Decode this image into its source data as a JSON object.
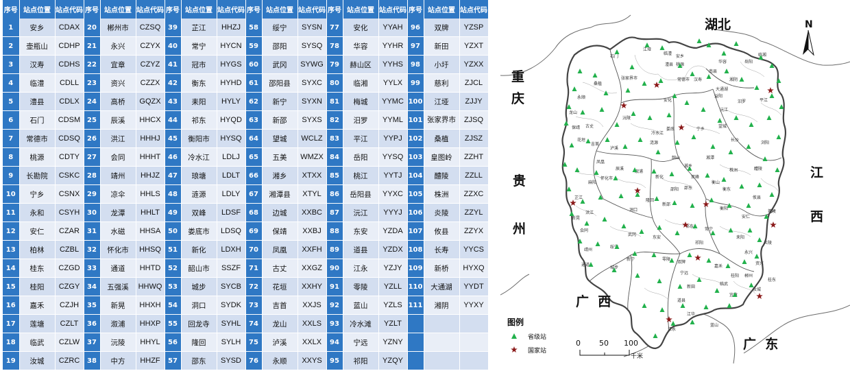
{
  "table": {
    "headers": [
      "序号",
      "站点位置",
      "站点代码",
      "序号",
      "站点位置",
      "站点代码",
      "序号",
      "站点位置",
      "站点代码",
      "序号",
      "站点位置",
      "站点代码",
      "序号",
      "站点位置",
      "站点代码",
      "序号",
      "站点位置",
      "站点代码"
    ],
    "rows": [
      [
        "1",
        "安乡",
        "CDAX",
        "20",
        "郴州市",
        "CZSQ",
        "39",
        "芷江",
        "HHZJ",
        "58",
        "绥宁",
        "SYSN",
        "77",
        "安化",
        "YYAH",
        "96",
        "双牌",
        "YZSP"
      ],
      [
        "2",
        "壶瓶山",
        "CDHP",
        "21",
        "永兴",
        "CZYX",
        "40",
        "常宁",
        "HYCN",
        "59",
        "邵阳",
        "SYSQ",
        "78",
        "华容",
        "YYHR",
        "97",
        "新田",
        "YZXT"
      ],
      [
        "3",
        "汉寿",
        "CDHS",
        "22",
        "宜章",
        "CZYZ",
        "41",
        "冠市",
        "HYGS",
        "60",
        "武冈",
        "SYWG",
        "79",
        "赫山区",
        "YYHS",
        "98",
        "小圩",
        "YZXX"
      ],
      [
        "4",
        "临澧",
        "CDLL",
        "23",
        "资兴",
        "CZZX",
        "42",
        "衡东",
        "HYHD",
        "61",
        "邵阳县",
        "SYXC",
        "80",
        "临湘",
        "YYLX",
        "99",
        "慈利",
        "ZJCL"
      ],
      [
        "5",
        "澧县",
        "CDLX",
        "24",
        "高桥",
        "GQZX",
        "43",
        "耒阳",
        "HYLY",
        "62",
        "新宁",
        "SYXN",
        "81",
        "梅城",
        "YYMC",
        "100",
        "江垭",
        "ZJJY"
      ],
      [
        "6",
        "石门",
        "CDSM",
        "25",
        "辰溪",
        "HHCX",
        "44",
        "祁东",
        "HYQD",
        "63",
        "新邵",
        "SYXS",
        "82",
        "汨罗",
        "YYML",
        "101",
        "张家界市",
        "ZJSQ"
      ],
      [
        "7",
        "常德市",
        "CDSQ",
        "26",
        "洪江",
        "HHHJ",
        "45",
        "衡阳市",
        "HYSQ",
        "64",
        "望城",
        "WCLZ",
        "83",
        "平江",
        "YYPJ",
        "102",
        "桑植",
        "ZJSZ"
      ],
      [
        "8",
        "桃源",
        "CDTY",
        "27",
        "会同",
        "HHHT",
        "46",
        "冷水江",
        "LDLJ",
        "65",
        "五美",
        "WMZX",
        "84",
        "岳阳",
        "YYSQ",
        "103",
        "皇图岭",
        "ZZHT"
      ],
      [
        "9",
        "长勘院",
        "CSKC",
        "28",
        "靖州",
        "HHJZ",
        "47",
        "琅塘",
        "LDLT",
        "66",
        "湘乡",
        "XTXX",
        "85",
        "桃江",
        "YYTJ",
        "104",
        "醴陵",
        "ZZLL"
      ],
      [
        "10",
        "宁乡",
        "CSNX",
        "29",
        "凉伞",
        "HHLS",
        "48",
        "涟源",
        "LDLY",
        "67",
        "湘潭县",
        "XTYL",
        "86",
        "岳阳县",
        "YYXC",
        "105",
        "株洲",
        "ZZXC"
      ],
      [
        "11",
        "永和",
        "CSYH",
        "30",
        "龙潭",
        "HHLT",
        "49",
        "双峰",
        "LDSF",
        "68",
        "边城",
        "XXBC",
        "87",
        "沅江",
        "YYYJ",
        "106",
        "炎陵",
        "ZZYL"
      ],
      [
        "12",
        "安仁",
        "CZAR",
        "31",
        "水磁",
        "HHSA",
        "50",
        "娄底市",
        "LDSQ",
        "69",
        "保靖",
        "XXBJ",
        "88",
        "东安",
        "YZDA",
        "107",
        "攸县",
        "ZZYX"
      ],
      [
        "13",
        "柏林",
        "CZBL",
        "32",
        "怀化市",
        "HHSQ",
        "51",
        "新化",
        "LDXH",
        "70",
        "凤凰",
        "XXFH",
        "89",
        "道县",
        "YZDX",
        "108",
        "长寿",
        "YYCS"
      ],
      [
        "14",
        "桂东",
        "CZGD",
        "33",
        "通道",
        "HHTD",
        "52",
        "韶山市",
        "SSZF",
        "71",
        "古丈",
        "XXGZ",
        "90",
        "江永",
        "YZJY",
        "109",
        "新桥",
        "HYXQ"
      ],
      [
        "15",
        "桂阳",
        "CZGY",
        "34",
        "五强溪",
        "HHWQ",
        "53",
        "城步",
        "SYCB",
        "72",
        "花垣",
        "XXHY",
        "91",
        "零陵",
        "YZLL",
        "110",
        "大通湖",
        "YYDT"
      ],
      [
        "16",
        "嘉禾",
        "CZJH",
        "35",
        "新晃",
        "HHXH",
        "54",
        "洞口",
        "SYDK",
        "73",
        "吉首",
        "XXJS",
        "92",
        "蓝山",
        "YZLS",
        "111",
        "湘阴",
        "YYXY"
      ],
      [
        "17",
        "莲塘",
        "CZLT",
        "36",
        "溆浦",
        "HHXP",
        "55",
        "回龙寺",
        "SYHL",
        "74",
        "龙山",
        "XXLS",
        "93",
        "冷水滩",
        "YZLT",
        "",
        "",
        " "
      ],
      [
        "18",
        "临武",
        "CZLW",
        "37",
        "沅陵",
        "HHYL",
        "56",
        "隆回",
        "SYLH",
        "75",
        "泸溪",
        "XXLX",
        "94",
        "宁远",
        "YZNY",
        "",
        "",
        " "
      ],
      [
        "19",
        "汝城",
        "CZRC",
        "38",
        "中方",
        "HHZF",
        "57",
        "邵东",
        "SYSD",
        "76",
        "永顺",
        "XXYS",
        "95",
        "祁阳",
        "YZQY",
        "",
        "",
        " "
      ]
    ]
  },
  "map": {
    "provinces": {
      "hubei": "湖北",
      "chongqing_1": "重",
      "chongqing_2": "庆",
      "guizhou_1": "贵",
      "guizhou_2": "州",
      "jiangxi_1": "江",
      "jiangxi_2": "西",
      "guangxi": "广  西",
      "guangdong": "广  东"
    },
    "north_label": "N",
    "legend": {
      "title": "图例",
      "provincial": "省级站",
      "national": "国家站",
      "provincial_color": "#22b14c",
      "national_color": "#8b1a1a"
    },
    "scale": {
      "ticks": [
        "0",
        "50",
        "100"
      ],
      "unit": "千米"
    },
    "county_names": [
      "石门",
      "江垭",
      "张家界市",
      "临澧",
      "常德市",
      "桑植",
      "永顺",
      "龙山",
      "保靖",
      "花垣",
      "吉首",
      "古丈",
      "凤凰",
      "泸溪",
      "沅陵",
      "辰溪",
      "溆浦",
      "麻阳",
      "怀化市",
      "芷江",
      "新晃",
      "洪江",
      "会同",
      "靖州",
      "通道",
      "安化",
      "桃源",
      "汉寿",
      "益阳",
      "沅江",
      "湘阴",
      "岳阳",
      "临湘",
      "平江",
      "汨罗",
      "望城",
      "长沙",
      "宁乡",
      "浏阳",
      "湘乡",
      "湘潭",
      "株洲",
      "醴陵",
      "攸县",
      "茶陵",
      "炎陵",
      "韶山",
      "娄底",
      "涟源",
      "冷水江",
      "新化",
      "新邵",
      "邵阳",
      "隆回",
      "洞口",
      "武冈",
      "新宁",
      "城步",
      "绥宁",
      "邵东",
      "双峰",
      "衡阳",
      "衡东",
      "衡山",
      "常宁",
      "祁阳",
      "耒阳",
      "安仁",
      "永兴",
      "资兴",
      "郴州",
      "桂阳",
      "宜章",
      "临武",
      "嘉禾",
      "新田",
      "宁远",
      "道县",
      "江永",
      "江华",
      "双牌",
      "零陵",
      "东安",
      "蓝山",
      "汝城",
      "桂东",
      "祁东",
      "南县",
      "华容",
      "安乡",
      "澧县",
      "大通湖"
    ]
  }
}
